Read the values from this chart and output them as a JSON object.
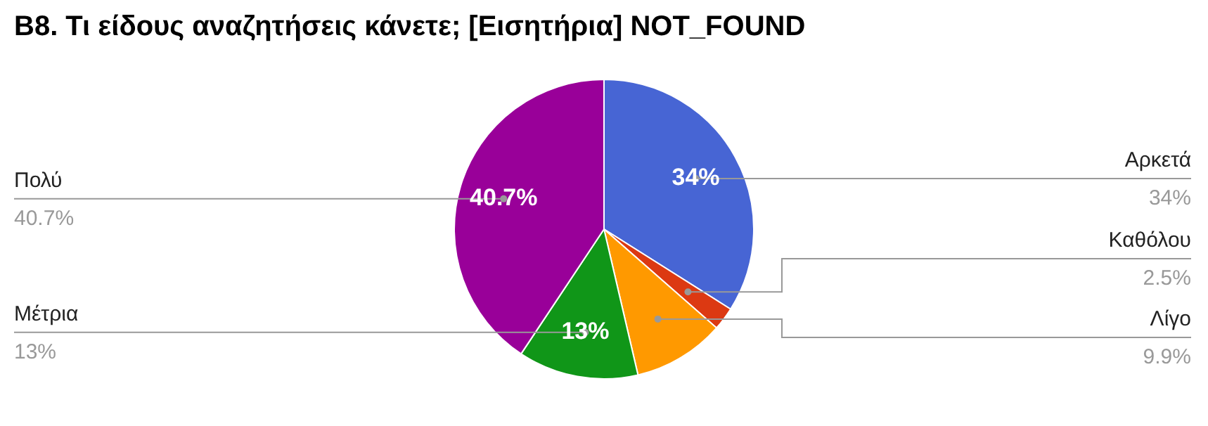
{
  "chart_data": {
    "type": "pie",
    "title": "B8. Τι είδους αναζητήσεις κάνετε; [Εισητήρια] NOT_FOUND",
    "categories": [
      "Αρκετά",
      "Καθόλου",
      "Λίγο",
      "Μέτρια",
      "Πολύ"
    ],
    "values": [
      34,
      2.5,
      9.9,
      13,
      40.7
    ],
    "value_labels": [
      "34%",
      "2.5%",
      "9.9%",
      "13%",
      "40.7%"
    ],
    "colors": [
      "#4765d4",
      "#dc3912",
      "#ff9900",
      "#109618",
      "#990099"
    ],
    "legend": false
  }
}
